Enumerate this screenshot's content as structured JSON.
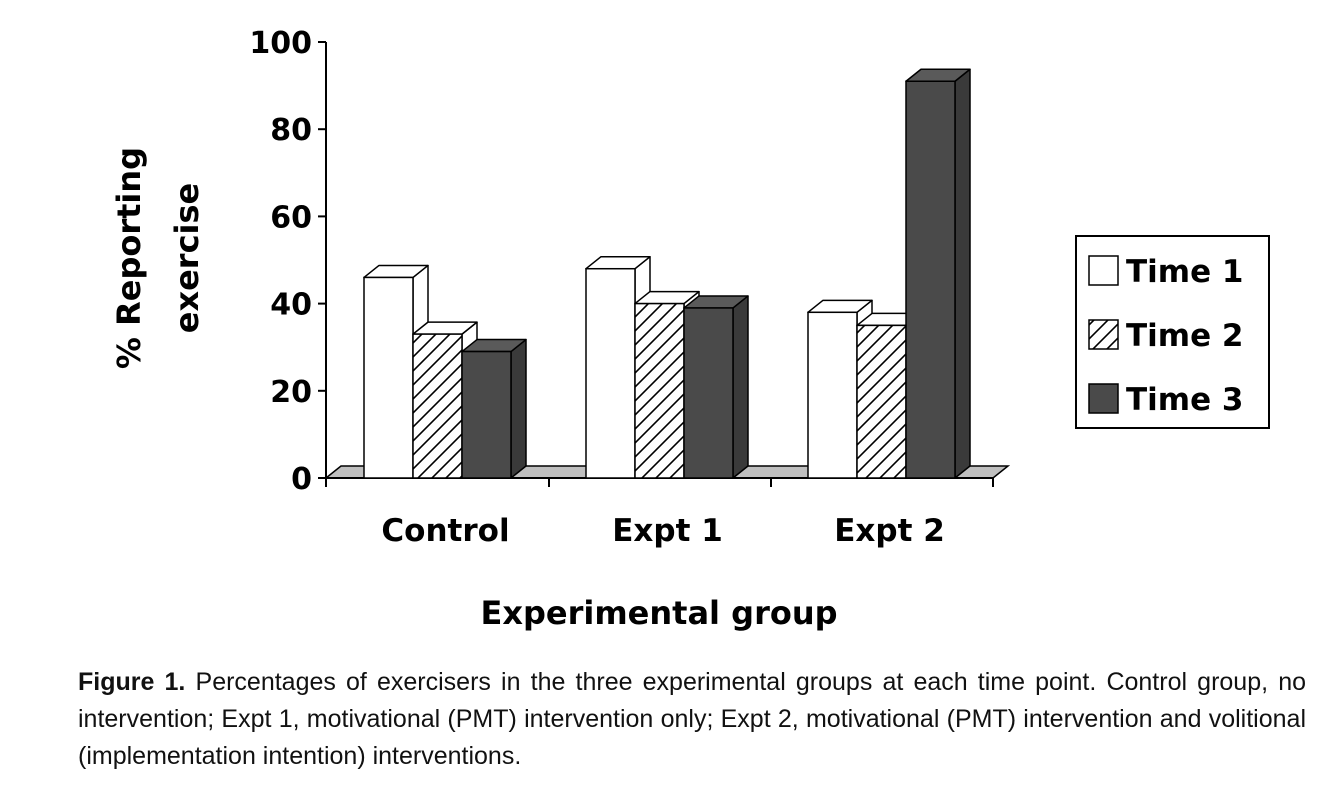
{
  "chart_data": {
    "type": "bar",
    "categories": [
      "Control",
      "Expt 1",
      "Expt 2"
    ],
    "series": [
      {
        "name": "Time 1",
        "values": [
          46,
          48,
          38
        ]
      },
      {
        "name": "Time 2",
        "values": [
          33,
          40,
          35
        ]
      },
      {
        "name": "Time 3",
        "values": [
          29,
          39,
          91
        ]
      }
    ],
    "ylabel_lines": [
      "% Reporting",
      "exercise"
    ],
    "xlabel": "Experimental group",
    "ylim": [
      0,
      100
    ],
    "yticks": [
      0,
      20,
      40,
      60,
      80,
      100
    ],
    "legend_position": "right",
    "grid": false,
    "colors": {
      "time1_fill": "#ffffff",
      "time2_fill": "#ffffff",
      "time3_fill": "#4a4a4a",
      "floor": "#bfbfbf",
      "stroke": "#000000"
    }
  },
  "caption": {
    "label": "Figure 1.",
    "text": "Percentages of exercisers in the three experimental groups at each time point. Control group, no intervention; Expt 1, motivational (PMT) intervention only; Expt 2, motivational (PMT) intervention and volitional (implementation intention) interventions."
  }
}
